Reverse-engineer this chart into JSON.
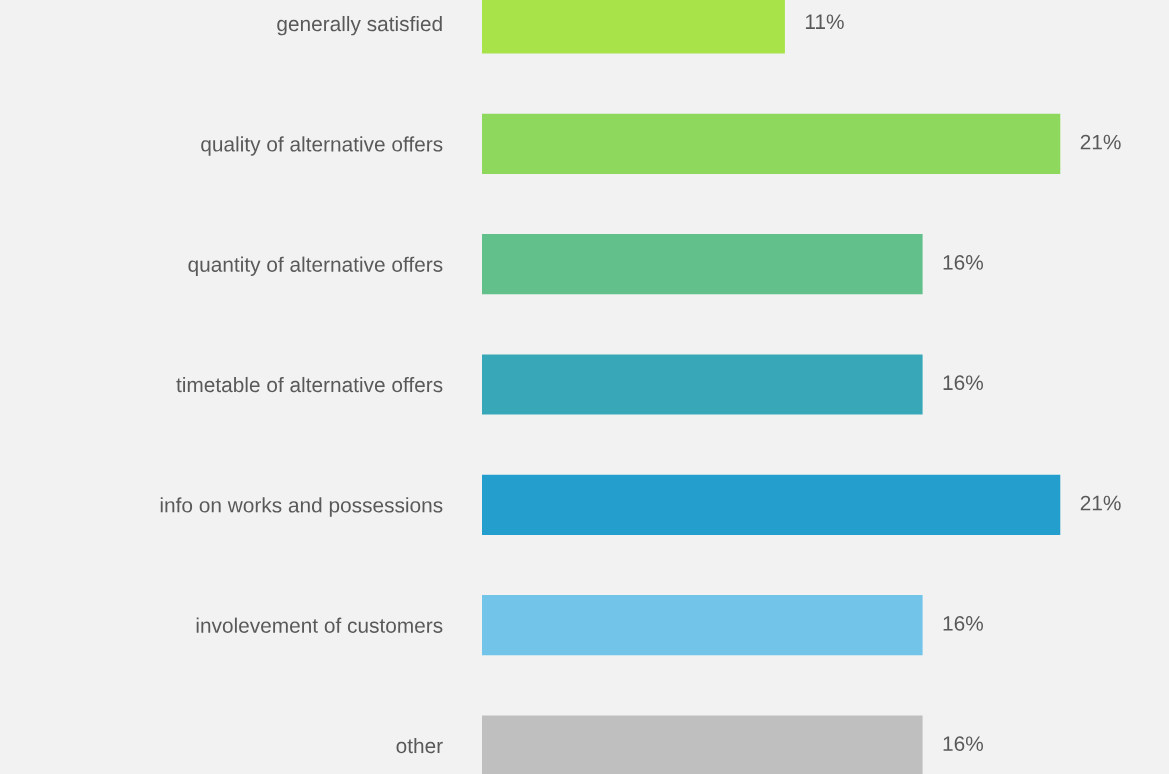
{
  "chart_data": {
    "type": "bar",
    "orientation": "horizontal",
    "categories": [
      "generally satisfied",
      "quality of alternative offers",
      "quantity of alternative offers",
      "timetable of alternative offers",
      "info on works and possessions",
      "involevement of customers",
      "other"
    ],
    "values": [
      11,
      21,
      16,
      16,
      21,
      16,
      16
    ],
    "value_labels": [
      "11%",
      "21%",
      "16%",
      "16%",
      "21%",
      "16%",
      "16%"
    ],
    "colors": [
      "#a8e34a",
      "#8ed85e",
      "#62c08a",
      "#38a8b8",
      "#239ecd",
      "#72c5e8",
      "#bfbfbf"
    ],
    "grid": false,
    "legend": false
  }
}
